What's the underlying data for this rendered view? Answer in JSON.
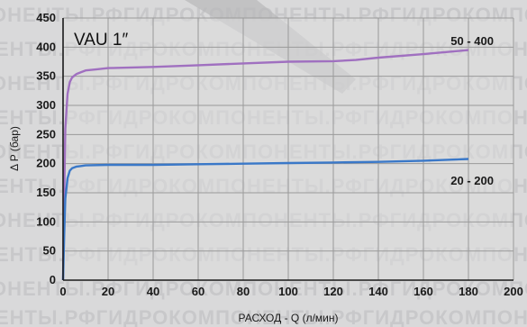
{
  "watermark": "ОНЕНТЫ.РФГИДРОКОМПОНЕНТЫ.РФГИДРОКОМПОНЕНТЫ.РФ",
  "colors": {
    "background": "#d9d9da",
    "plot_bg": "#dcdcdd",
    "grid": "#9a9a9a",
    "axis": "#1a1a1a",
    "series_50_400": "#a070c0",
    "series_20_200": "#3a78c8"
  },
  "chart_data": {
    "type": "line",
    "title": "VAU 1″",
    "xlabel": "РАСХОД - Q (л/мин)",
    "ylabel": "Δ P (бар)",
    "xlim": [
      0,
      200
    ],
    "ylim": [
      0,
      450
    ],
    "xticks": [
      0,
      20,
      40,
      60,
      80,
      100,
      120,
      140,
      160,
      180,
      200
    ],
    "yticks": [
      0,
      50,
      100,
      150,
      200,
      250,
      300,
      350,
      400,
      450
    ],
    "grid": true,
    "series": [
      {
        "name": "50 - 400",
        "x": [
          0,
          0.5,
          1,
          2,
          3,
          4,
          6,
          8,
          10,
          15,
          20,
          40,
          60,
          80,
          100,
          120,
          130,
          140,
          160,
          180
        ],
        "y": [
          0,
          150,
          260,
          320,
          340,
          348,
          354,
          357,
          360,
          362,
          364,
          366,
          369,
          372,
          375,
          376,
          378,
          382,
          388,
          395
        ]
      },
      {
        "name": "20 - 200",
        "x": [
          0,
          0.5,
          1,
          2,
          3,
          4,
          6,
          8,
          10,
          20,
          40,
          60,
          80,
          100,
          120,
          140,
          160,
          180
        ],
        "y": [
          0,
          80,
          140,
          175,
          188,
          192,
          195,
          196,
          197,
          198,
          198,
          199,
          200,
          201,
          202,
          203,
          205,
          208
        ]
      }
    ]
  }
}
